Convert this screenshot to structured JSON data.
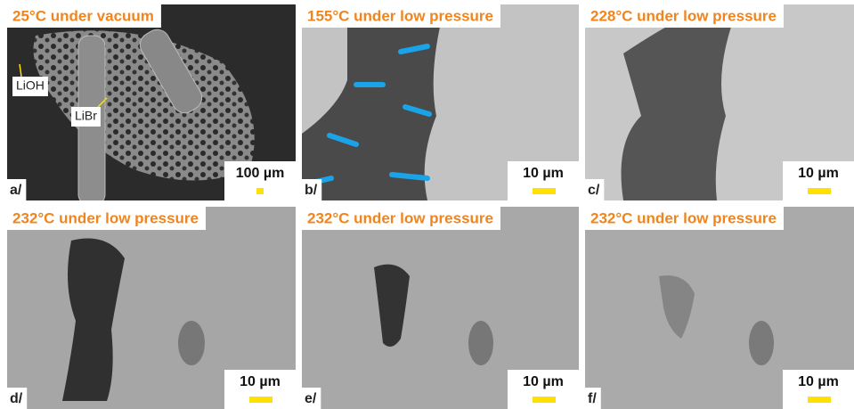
{
  "panels": [
    {
      "title": "25°C under vacuum",
      "label": "a/",
      "scale_bar": "100 µm",
      "annotations": [
        "LiOH",
        "LiBr"
      ]
    },
    {
      "title": "155°C under low pressure",
      "label": "b/",
      "scale_bar": "10 µm"
    },
    {
      "title": "228°C under low pressure",
      "label": "c/",
      "scale_bar": "10 µm"
    },
    {
      "title": "232°C under low pressure",
      "label": "d/",
      "scale_bar": "10 µm"
    },
    {
      "title": "232°C under low pressure",
      "label": "e/",
      "scale_bar": "10 µm"
    },
    {
      "title": "232°C under low pressure",
      "label": "f/",
      "scale_bar": "10 µm"
    }
  ]
}
